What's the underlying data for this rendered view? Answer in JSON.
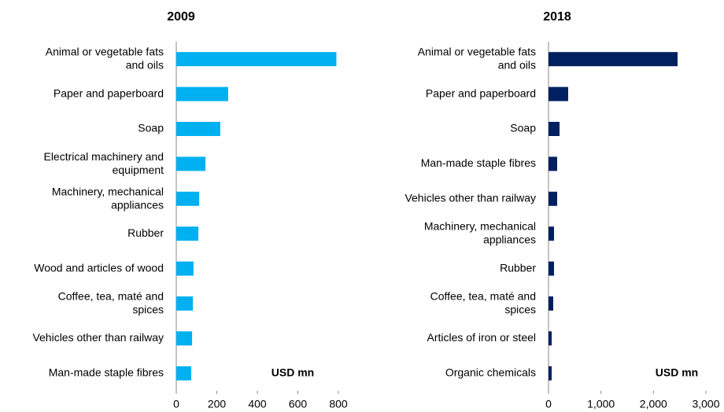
{
  "chart_data": [
    {
      "type": "bar",
      "orientation": "horizontal",
      "title": "2009",
      "categories": [
        "Animal or vegetable fats and oils",
        "Paper and paperboard",
        "Soap",
        "Electrical machinery and equipment",
        "Machinery, mechanical appliances",
        "Rubber",
        "Wood and articles of wood",
        "Coffee, tea, maté and spices",
        "Vehicles other than railway",
        "Man-made staple fibres"
      ],
      "values": [
        790,
        256,
        217,
        144,
        113,
        109,
        85,
        82,
        78,
        74
      ],
      "color": "#00b0f0",
      "xlim": [
        0,
        800
      ],
      "xticks": [
        0,
        200,
        400,
        600,
        800
      ],
      "annotation": "USD mn"
    },
    {
      "type": "bar",
      "orientation": "horizontal",
      "title": "2018",
      "categories": [
        "Animal or vegetable fats and oils",
        "Paper and paperboard",
        "Soap",
        "Man-made staple fibres",
        "Vehicles other than railway",
        "Machinery, mechanical appliances",
        "Rubber",
        "Coffee, tea, maté and spices",
        "Articles of iron or steel",
        "Organic chemicals"
      ],
      "values": [
        2460,
        375,
        210,
        165,
        165,
        105,
        105,
        90,
        60,
        60
      ],
      "color": "#002060",
      "xlim": [
        0,
        3000
      ],
      "xticks": [
        0,
        {
          "value": 1000,
          "label": "1,000"
        },
        {
          "value": 2000,
          "label": "2,000"
        },
        {
          "value": 3000,
          "label": "3,000"
        }
      ],
      "annotation": "USD mn"
    }
  ]
}
